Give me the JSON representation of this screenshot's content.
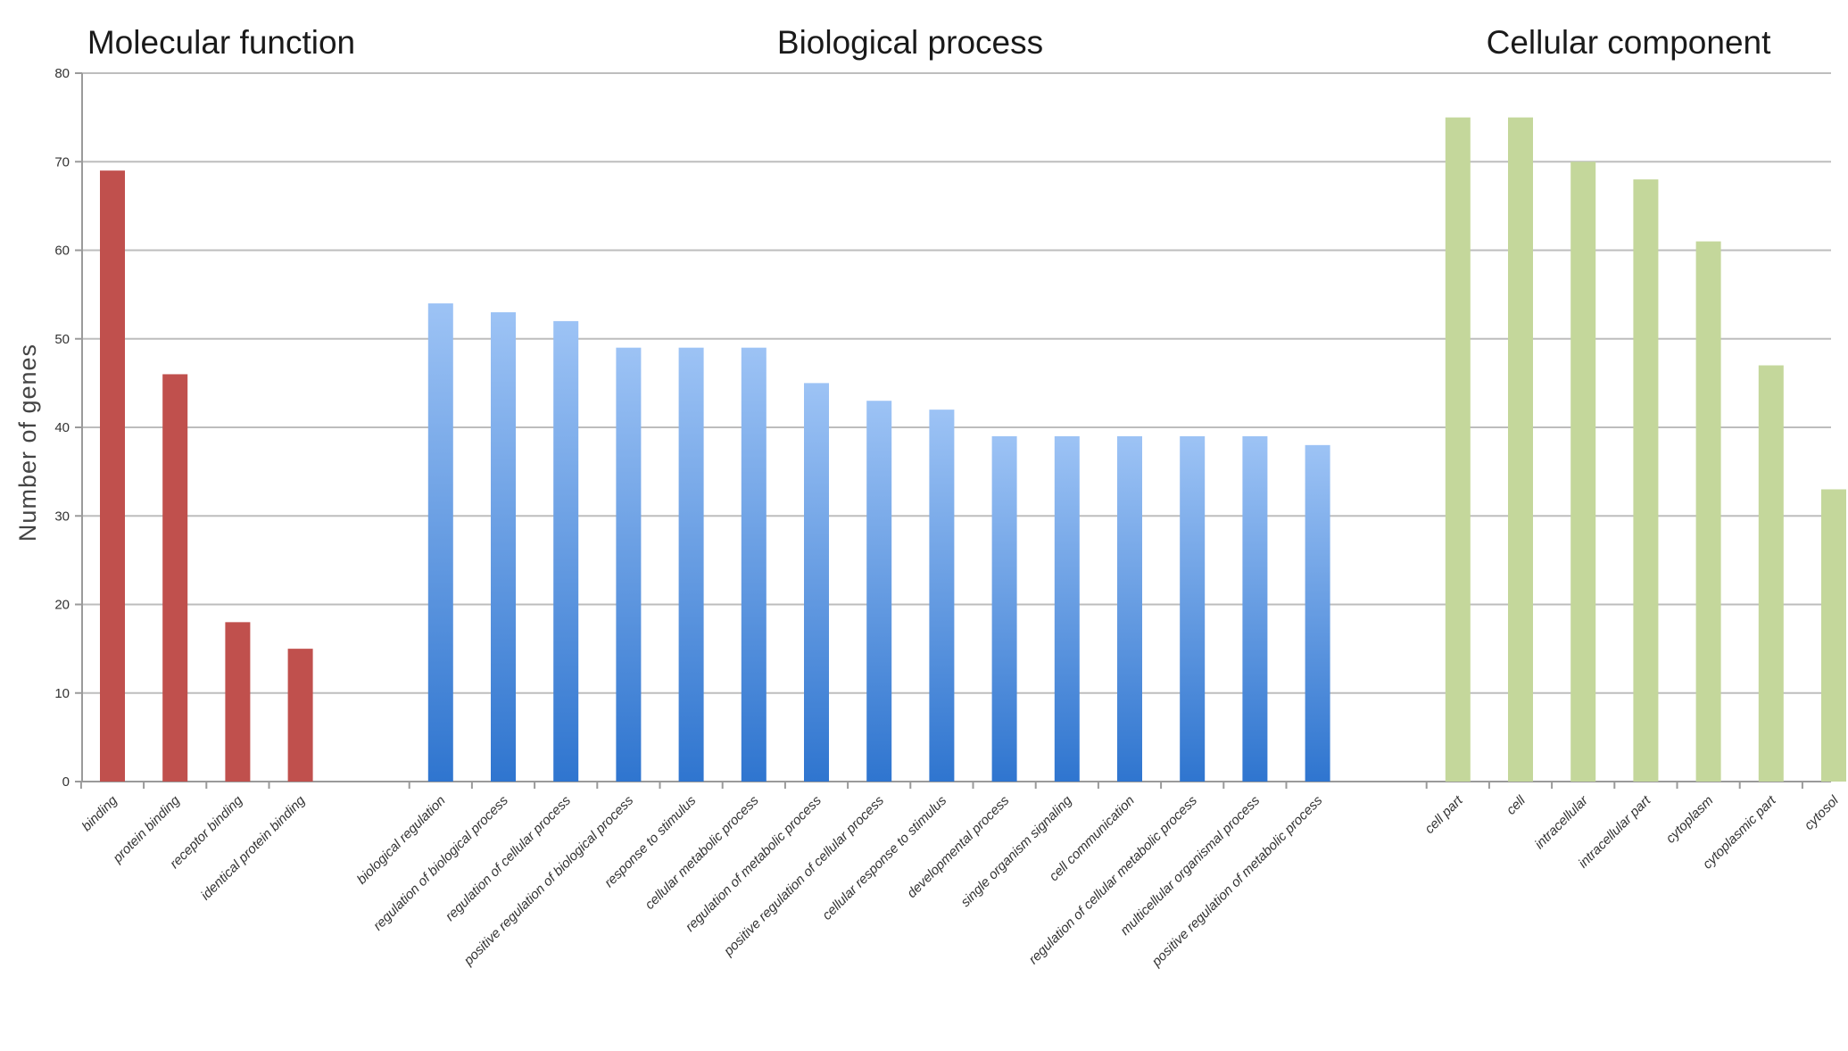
{
  "chart_data": {
    "type": "bar",
    "ylabel": "Number of genes",
    "ylim": [
      0,
      80
    ],
    "yticks": [
      0,
      10,
      20,
      30,
      40,
      50,
      60,
      70,
      80
    ],
    "grid": true,
    "groups": [
      {
        "title": "Molecular function",
        "color": "#c0504d",
        "fill_style": "solid",
        "categories": [
          "binding",
          "protein binding",
          "receptor binding",
          "identical protein binding"
        ],
        "values": [
          69,
          46,
          18,
          15
        ]
      },
      {
        "title": "Biological process",
        "color": "#2f75cf",
        "color_light": "#9dc3f5",
        "fill_style": "vertical-gradient",
        "categories": [
          "biological regulation",
          "regulation of biological process",
          "regulation of cellular process",
          "positive regulation of biological process",
          "response to stimulus",
          "cellular metabolic process",
          "regulation of metabolic process",
          "positive regulation of cellular process",
          "cellular response to stimulus",
          "developmental process",
          "single organism signaling",
          "cell communication",
          "regulation of cellular metabolic process",
          "multicellular organismal process",
          "positive regulation of metabolic process"
        ],
        "values": [
          54,
          53,
          52,
          49,
          49,
          49,
          45,
          43,
          42,
          39,
          39,
          39,
          39,
          39,
          38
        ]
      },
      {
        "title": "Cellular component",
        "color": "#c4d79b",
        "fill_style": "solid",
        "categories": [
          "cell part",
          "cell",
          "intracellular",
          "intracellular part",
          "cytoplasm",
          "cytoplasmic part",
          "cytosol"
        ],
        "values": [
          75,
          75,
          70,
          68,
          61,
          47,
          33
        ]
      }
    ]
  }
}
